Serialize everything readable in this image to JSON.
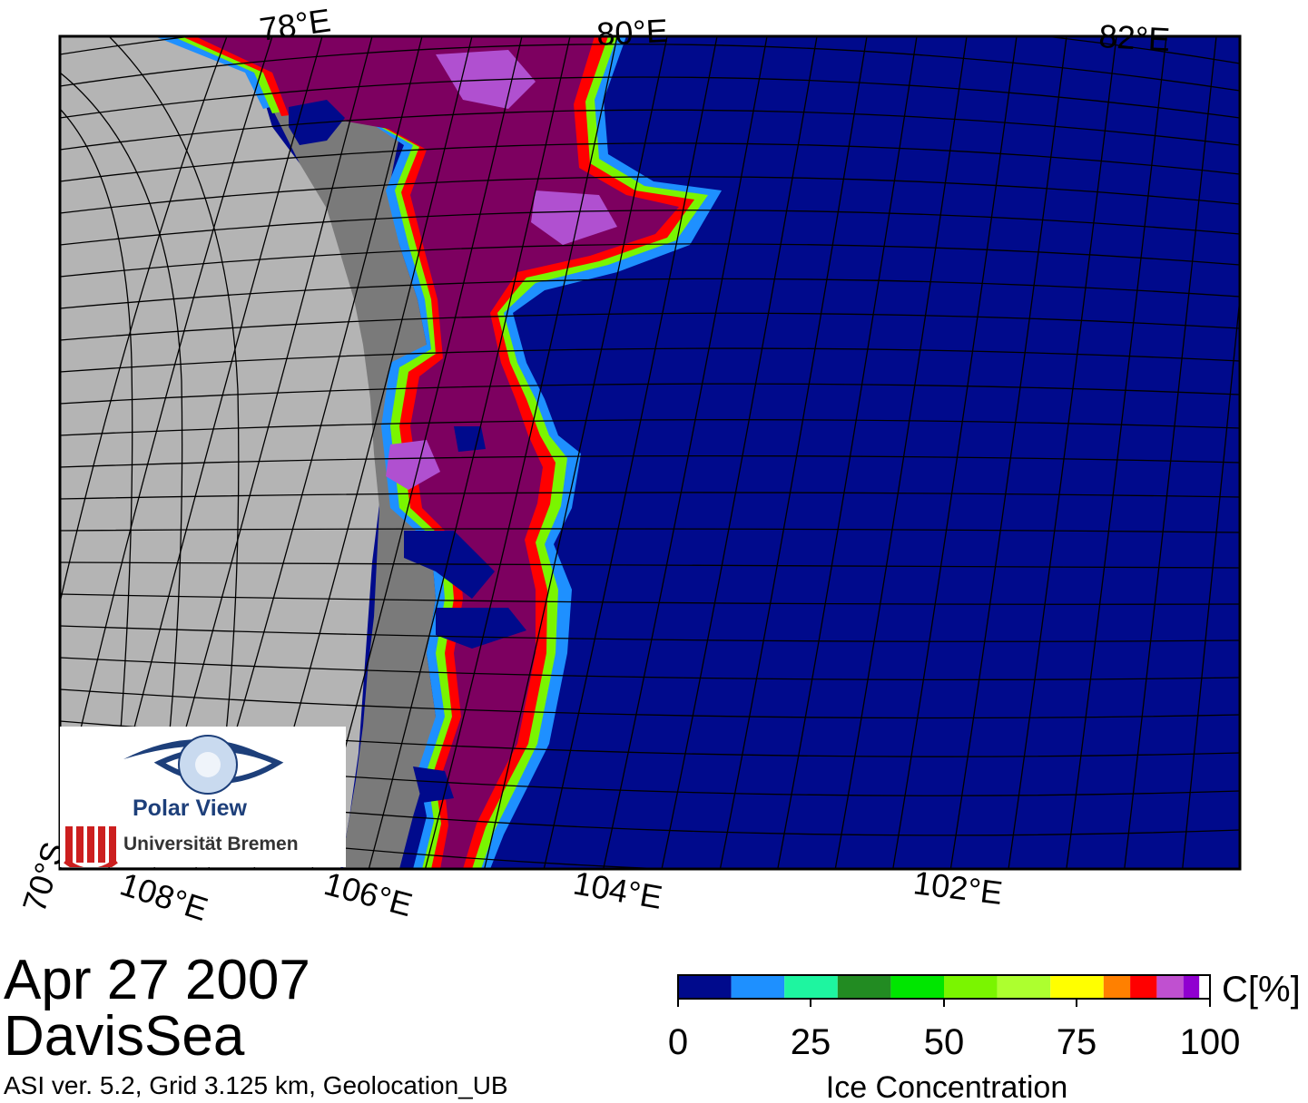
{
  "map": {
    "latitude_labels": [
      "70°S"
    ],
    "longitude_labels_top": [
      "78°E",
      "80°E",
      "82°E"
    ],
    "longitude_labels_bottom": [
      "108°E",
      "106°E",
      "104°E",
      "102°E"
    ]
  },
  "title": {
    "date": "Apr 27 2007",
    "region": "DavisSea"
  },
  "info_line": "ASI ver. 5.2,  Grid 3.125 km, Geolocation_UB",
  "logo": {
    "polar_view": "Polar View",
    "university": "Universität Bremen"
  },
  "colorbar": {
    "unit_label": "C[%]",
    "title": "Ice Concentration",
    "ticks": [
      "0",
      "25",
      "50",
      "75",
      "100"
    ],
    "colors": [
      "#000a8c",
      "#1e90ff",
      "#1ef5a0",
      "#228b22",
      "#00e600",
      "#7af500",
      "#adff2f",
      "#ffff00",
      "#ff8000",
      "#ff0000",
      "#c050d0",
      "#9000d0",
      "#ffffff"
    ]
  },
  "legend_colors": {
    "open_water": "#000a8c",
    "land": "#b4b4b4",
    "ice_shelf": "#808080",
    "high_ice": "#7d0060"
  }
}
